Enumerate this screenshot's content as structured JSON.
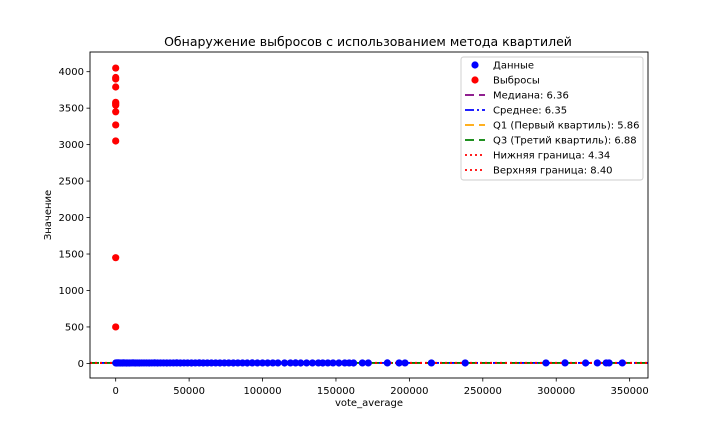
{
  "chart_data": {
    "type": "scatter",
    "title": "Обнаружение выбросов с использованием метода квартилей",
    "xlabel": "vote_average",
    "ylabel": "Значение",
    "xlim": [
      -17500,
      362500
    ],
    "ylim": [
      -200,
      4270
    ],
    "xticks": [
      0,
      50000,
      100000,
      150000,
      200000,
      250000,
      300000,
      350000
    ],
    "yticks": [
      0,
      500,
      1000,
      1500,
      2000,
      2500,
      3000,
      3500,
      4000
    ],
    "grid": false,
    "legend_position": "top-right",
    "series": [
      {
        "name": "Данные",
        "color": "#0000ff",
        "marker": "circle",
        "x": [
          100,
          300,
          600,
          900,
          1300,
          1800,
          2400,
          3000,
          3700,
          4500,
          5300,
          6200,
          7200,
          8200,
          9300,
          10500,
          11800,
          13200,
          14600,
          16100,
          17700,
          19300,
          21000,
          22800,
          24600,
          26500,
          28500,
          30500,
          32600,
          34800,
          37000,
          39300,
          41600,
          44000,
          46500,
          49000,
          51600,
          54200,
          56900,
          59600,
          62400,
          65200,
          68100,
          71000,
          74000,
          77000,
          80100,
          83200,
          86400,
          89600,
          93000,
          96500,
          100000,
          103500,
          107000,
          110500,
          115000,
          119000,
          122500,
          126000,
          130000,
          134000,
          138000,
          141000,
          144500,
          148000,
          152000,
          156000,
          159000,
          162000,
          168000,
          172000,
          185000,
          193000,
          197000,
          215000,
          238000,
          293000,
          306000,
          320000,
          328000,
          334000,
          336000,
          345000
        ],
        "y": [
          6.4,
          6.1,
          6.8,
          5.9,
          6.5,
          7.0,
          6.2,
          5.5,
          6.6,
          6.0,
          6.9,
          6.3,
          5.8,
          6.7,
          6.1,
          6.4,
          7.2,
          5.6,
          6.5,
          6.0,
          6.8,
          6.2,
          6.6,
          5.9,
          6.3,
          7.1,
          6.0,
          6.4,
          6.7,
          5.7,
          6.5,
          6.2,
          6.9,
          6.1,
          6.3,
          6.6,
          5.8,
          6.4,
          7.0,
          6.0,
          6.5,
          6.2,
          6.8,
          5.9,
          6.3,
          6.7,
          6.1,
          6.4,
          6.6,
          5.7,
          6.9,
          6.2,
          6.5,
          6.0,
          6.3,
          6.8,
          6.1,
          6.4,
          7.1,
          5.9,
          6.6,
          6.2,
          6.5,
          6.0,
          6.3,
          6.8,
          6.1,
          6.4,
          6.7,
          5.8,
          6.5,
          6.2,
          6.9,
          6.0,
          6.3,
          6.6,
          6.1,
          6.4,
          7.0,
          5.9,
          6.5,
          6.2,
          6.8,
          6.3
        ]
      },
      {
        "name": "Выбросы",
        "color": "#ff0000",
        "marker": "circle",
        "x": [
          0,
          0,
          0,
          0,
          0,
          0,
          0,
          0,
          0,
          0,
          0,
          0
        ],
        "y": [
          500,
          1450,
          3050,
          3270,
          3450,
          3540,
          3560,
          3580,
          3790,
          3900,
          3920,
          4050
        ]
      }
    ],
    "reference_lines": [
      {
        "label": "Медиана: 6.36",
        "value": 6.36,
        "color": "#800080",
        "dash": "9 5"
      },
      {
        "label": "Среднее: 6.35",
        "value": 6.35,
        "color": "#0000ff",
        "dash": "9 3 2 3"
      },
      {
        "label": "Q1 (Первый квартиль): 5.86",
        "value": 5.86,
        "color": "#ffa500",
        "dash": "9 5"
      },
      {
        "label": "Q3 (Третий квартиль): 6.88",
        "value": 6.88,
        "color": "#008000",
        "dash": "9 5"
      },
      {
        "label": "Нижняя граница: 4.34",
        "value": 4.34,
        "color": "#ff0000",
        "dash": "2 3"
      },
      {
        "label": "Верхняя граница: 8.40",
        "value": 8.4,
        "color": "#ff0000",
        "dash": "2 3"
      }
    ]
  }
}
